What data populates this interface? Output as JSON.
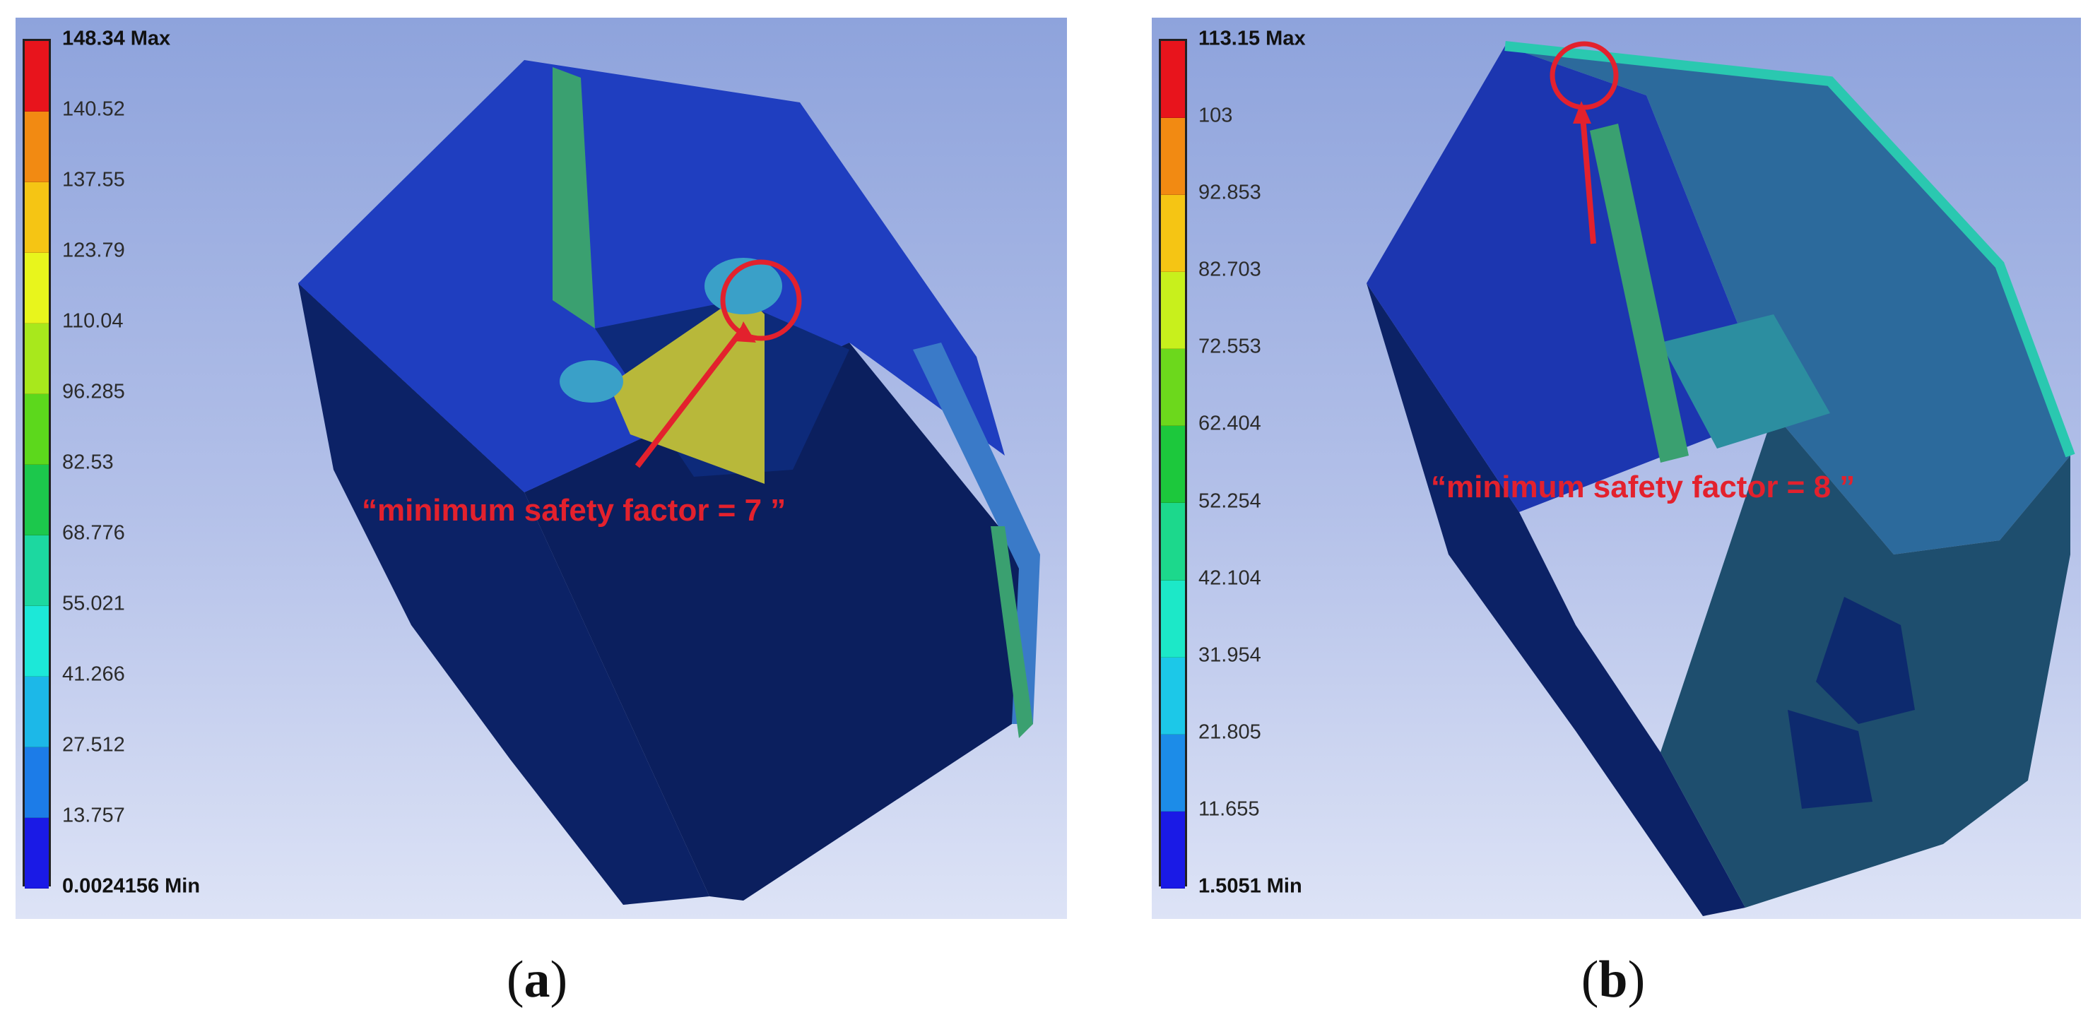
{
  "panels": [
    {
      "id": "a",
      "caption_open": "(",
      "caption_letter": "a",
      "caption_close": ")",
      "annotation": "“minimum safety factor = 7 ”",
      "legend": {
        "max_label": "148.34 Max",
        "min_label": "0.0024156 Min",
        "levels": [
          "140.52",
          "137.55",
          "123.79",
          "110.04",
          "96.285",
          "82.53",
          "68.776",
          "55.021",
          "41.266",
          "27.512",
          "13.757"
        ]
      }
    },
    {
      "id": "b",
      "caption_open": "(",
      "caption_letter": "b",
      "caption_close": ")",
      "annotation": "“minimum safety factor = 8 ”",
      "legend": {
        "max_label": "113.15 Max",
        "min_label": "1.5051 Min",
        "levels": [
          "103",
          "92.853",
          "82.703",
          "72.553",
          "62.404",
          "52.254",
          "42.104",
          "31.954",
          "21.805",
          "11.655"
        ]
      }
    }
  ],
  "colors": {
    "scale_a": [
      "#e8141c",
      "#f28a12",
      "#f5c514",
      "#e8f51c",
      "#a8e81c",
      "#5cd81c",
      "#1cc84c",
      "#1cd8a0",
      "#1ce8d8",
      "#1cb8e8",
      "#1c7ce8",
      "#1a1ae6"
    ],
    "scale_b": [
      "#e8141c",
      "#f28a12",
      "#f5c514",
      "#c8f01c",
      "#6cd81c",
      "#1cc83c",
      "#1cd88c",
      "#1ce8c8",
      "#1cc8e8",
      "#1c8ce8",
      "#1a1ae6"
    ],
    "annotation": "#e3212d",
    "model_dark": "#0a1f5c",
    "model_mid": "#1c34a8",
    "model_light": "#2f5ae0"
  }
}
